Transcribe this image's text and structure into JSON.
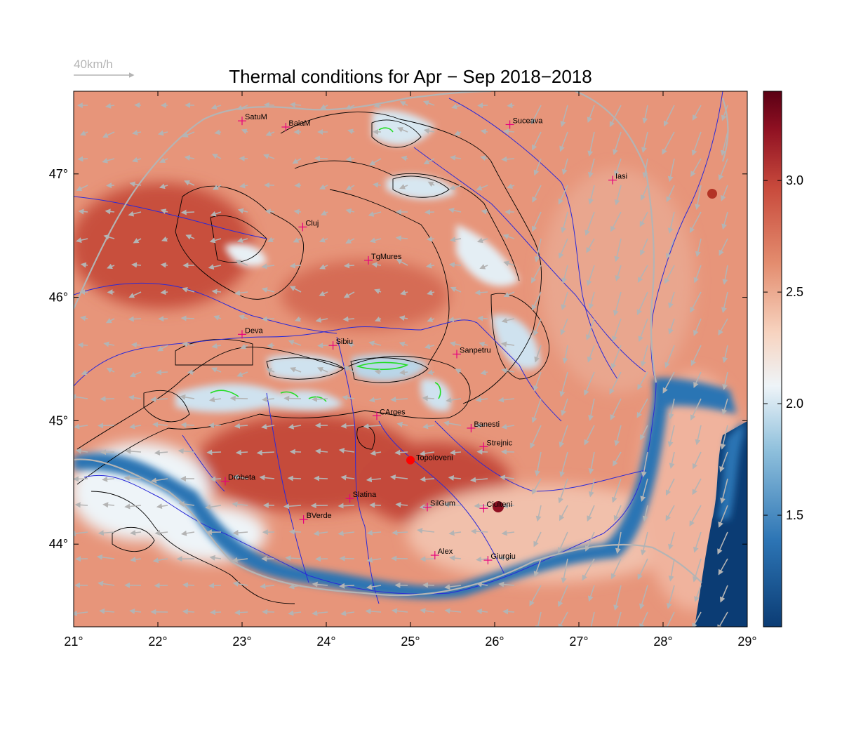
{
  "title": "Thermal conditions for Apr − Sep  2018−2018",
  "wind_scale": {
    "label": "40km/h"
  },
  "axes": {
    "lon_ticks": [
      {
        "value": 21,
        "label": "21°"
      },
      {
        "value": 22,
        "label": "22°"
      },
      {
        "value": 23,
        "label": "23°"
      },
      {
        "value": 24,
        "label": "24°"
      },
      {
        "value": 25,
        "label": "25°"
      },
      {
        "value": 26,
        "label": "26°"
      },
      {
        "value": 27,
        "label": "27°"
      },
      {
        "value": 28,
        "label": "28°"
      },
      {
        "value": 29,
        "label": "29°"
      }
    ],
    "lat_ticks": [
      {
        "value": 47,
        "label": "47°"
      },
      {
        "value": 46,
        "label": "46°"
      },
      {
        "value": 45,
        "label": "45°"
      },
      {
        "value": 44,
        "label": "44°"
      }
    ],
    "lon_range": [
      21,
      29
    ],
    "lat_range": [
      43.33,
      47.67
    ]
  },
  "colorbar": {
    "range": [
      1.0,
      3.4
    ],
    "ticks": [
      {
        "value": 3.0,
        "label": "3.0"
      },
      {
        "value": 2.5,
        "label": "2.5"
      },
      {
        "value": 2.0,
        "label": "2.0"
      },
      {
        "value": 1.5,
        "label": "1.5"
      }
    ],
    "stops": [
      "#0b3c74",
      "#2c74b4",
      "#8fc0dc",
      "#eef4f8",
      "#f7d3bf",
      "#e38c6e",
      "#c84a3c",
      "#8f1022",
      "#5a0014"
    ]
  },
  "colors": {
    "rivers": "#2a2ad8",
    "borders": "#b4b4b4",
    "contours": "#000000",
    "marker": "#e6007e",
    "highlight": "#ff0000",
    "lakes": "#00d8e0",
    "peaks": "#22dd22"
  },
  "cities": [
    {
      "name": "SatuM",
      "lon": 23.0,
      "lat": 47.43
    },
    {
      "name": "BaiaM",
      "lon": 23.52,
      "lat": 47.38
    },
    {
      "name": "Suceava",
      "lon": 26.18,
      "lat": 47.4
    },
    {
      "name": "Iasi",
      "lon": 27.4,
      "lat": 46.95
    },
    {
      "name": "Cluj",
      "lon": 23.72,
      "lat": 46.57
    },
    {
      "name": "TgMures",
      "lon": 24.5,
      "lat": 46.3
    },
    {
      "name": "Deva",
      "lon": 23.0,
      "lat": 45.7
    },
    {
      "name": "Sibiu",
      "lon": 24.08,
      "lat": 45.61
    },
    {
      "name": "Sanpetru",
      "lon": 25.55,
      "lat": 45.54
    },
    {
      "name": "CArges",
      "lon": 24.6,
      "lat": 45.04
    },
    {
      "name": "Banesti",
      "lon": 25.72,
      "lat": 44.94
    },
    {
      "name": "Strejnic",
      "lon": 25.87,
      "lat": 44.79
    },
    {
      "name": "Drobeta",
      "lon": 22.8,
      "lat": 44.51
    },
    {
      "name": "Slatina",
      "lon": 24.28,
      "lat": 44.37
    },
    {
      "name": "SilGum",
      "lon": 25.2,
      "lat": 44.3
    },
    {
      "name": "Ciulteni",
      "lon": 25.87,
      "lat": 44.29
    },
    {
      "name": "BVerde",
      "lon": 23.73,
      "lat": 44.2
    },
    {
      "name": "Alex",
      "lon": 25.29,
      "lat": 43.91
    },
    {
      "name": "Giurgiu",
      "lon": 25.92,
      "lat": 43.87
    }
  ],
  "highlight_site": {
    "name": "Topoloveni",
    "lon": 25.0,
    "lat": 44.68
  }
}
